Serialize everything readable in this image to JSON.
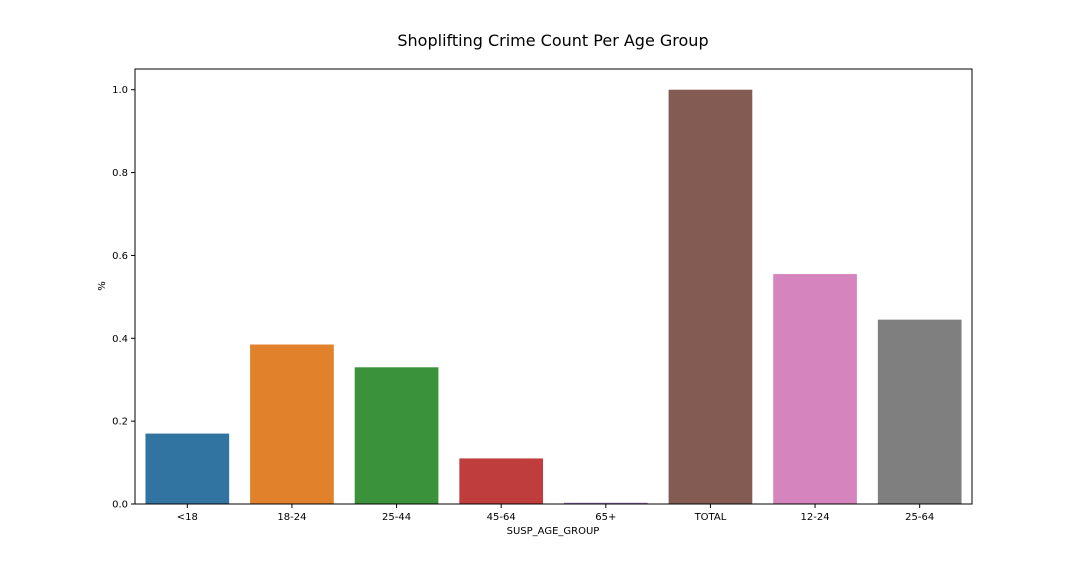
{
  "chart_data": {
    "type": "bar",
    "title": "Shoplifting Crime Count Per Age Group",
    "xlabel": "SUSP_AGE_GROUP",
    "ylabel": "%",
    "categories": [
      "<18",
      "18-24",
      "25-44",
      "45-64",
      "65+",
      "TOTAL",
      "12-24",
      "25-64"
    ],
    "values": [
      0.17,
      0.385,
      0.33,
      0.11,
      0.003,
      1.0,
      0.555,
      0.445
    ],
    "colors": [
      "#3274a1",
      "#e1812c",
      "#3a923a",
      "#c03d3e",
      "#9372b2",
      "#845b53",
      "#d684bd",
      "#7f7f7f"
    ],
    "ylim": [
      0,
      1.05
    ],
    "yticks": [
      0.0,
      0.2,
      0.4,
      0.6,
      0.8,
      1.0
    ],
    "ytick_labels": [
      "0.0",
      "0.2",
      "0.4",
      "0.6",
      "0.8",
      "1.0"
    ],
    "grid": false,
    "legend": false
  }
}
